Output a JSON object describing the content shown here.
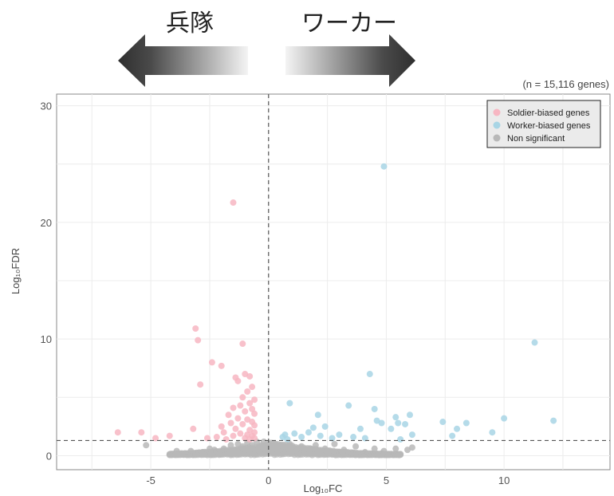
{
  "header": {
    "left_label": "兵隊",
    "right_label": "ワーカー"
  },
  "chart_data": {
    "type": "scatter",
    "title": "",
    "note": "(n = 15,116 genes)",
    "xlabel": "Log₁₀FC",
    "ylabel": "Log₁₀FDR",
    "xlim": [
      -9,
      14.5
    ],
    "ylim": [
      -1.2,
      31
    ],
    "xticks": [
      -5,
      0,
      5,
      10
    ],
    "yticks": [
      0,
      10,
      20,
      30
    ],
    "grid": true,
    "legend_position": "top-right",
    "vline_x": 0,
    "hline_y": 1.3,
    "colors": {
      "soldier": "#f7b6c2",
      "worker": "#a8d5e5",
      "nonsig": "#b8b8b8",
      "arrow_dark": "#3a3a3a",
      "panel_border": "#888888",
      "grid": "#ececec"
    },
    "series": [
      {
        "name": "Soldier-biased genes",
        "color": "#f7b6c2",
        "points": [
          [
            -1.5,
            21.7
          ],
          [
            -3.1,
            10.9
          ],
          [
            -3.0,
            9.9
          ],
          [
            -1.1,
            9.6
          ],
          [
            -2.4,
            8.0
          ],
          [
            -2.0,
            7.7
          ],
          [
            -1.0,
            7.0
          ],
          [
            -1.4,
            6.7
          ],
          [
            -0.8,
            6.8
          ],
          [
            -1.3,
            6.4
          ],
          [
            -2.9,
            6.1
          ],
          [
            -0.7,
            5.9
          ],
          [
            -0.9,
            5.5
          ],
          [
            -1.1,
            5.0
          ],
          [
            -0.6,
            4.8
          ],
          [
            -0.8,
            4.5
          ],
          [
            -1.2,
            4.3
          ],
          [
            -1.5,
            4.1
          ],
          [
            -0.7,
            4.0
          ],
          [
            -1.0,
            3.8
          ],
          [
            -0.6,
            3.6
          ],
          [
            -1.7,
            3.5
          ],
          [
            -1.3,
            3.2
          ],
          [
            -0.9,
            3.1
          ],
          [
            -0.7,
            2.9
          ],
          [
            -1.6,
            2.8
          ],
          [
            -1.1,
            2.7
          ],
          [
            -0.6,
            2.6
          ],
          [
            -3.2,
            2.3
          ],
          [
            -2.0,
            2.5
          ],
          [
            -1.4,
            2.3
          ],
          [
            -0.8,
            2.2
          ],
          [
            -0.6,
            2.0
          ],
          [
            -1.9,
            2.0
          ],
          [
            -1.2,
            1.9
          ],
          [
            -0.9,
            1.8
          ],
          [
            -0.7,
            1.7
          ],
          [
            -1.5,
            1.7
          ],
          [
            -2.2,
            1.6
          ],
          [
            -0.6,
            1.5
          ],
          [
            -1.0,
            1.5
          ],
          [
            -6.4,
            2.0
          ],
          [
            -5.4,
            2.0
          ],
          [
            -4.8,
            1.5
          ],
          [
            -4.2,
            1.7
          ],
          [
            -2.6,
            1.5
          ],
          [
            -1.8,
            1.4
          ],
          [
            -0.8,
            1.4
          ]
        ]
      },
      {
        "name": "Worker-biased genes",
        "color": "#a8d5e5",
        "points": [
          [
            4.9,
            24.8
          ],
          [
            11.3,
            9.7
          ],
          [
            4.3,
            7.0
          ],
          [
            0.9,
            4.5
          ],
          [
            3.4,
            4.3
          ],
          [
            2.1,
            3.5
          ],
          [
            4.5,
            4.0
          ],
          [
            5.4,
            3.3
          ],
          [
            6.0,
            3.5
          ],
          [
            4.6,
            3.0
          ],
          [
            3.9,
            2.3
          ],
          [
            2.4,
            2.5
          ],
          [
            1.9,
            2.4
          ],
          [
            5.8,
            2.7
          ],
          [
            5.5,
            2.8
          ],
          [
            4.8,
            2.8
          ],
          [
            5.2,
            2.3
          ],
          [
            7.4,
            2.9
          ],
          [
            8.4,
            2.8
          ],
          [
            10.0,
            3.2
          ],
          [
            12.1,
            3.0
          ],
          [
            8.0,
            2.3
          ],
          [
            9.5,
            2.0
          ],
          [
            7.8,
            1.7
          ],
          [
            3.0,
            1.8
          ],
          [
            2.2,
            1.7
          ],
          [
            1.4,
            1.6
          ],
          [
            3.6,
            1.6
          ],
          [
            0.7,
            1.8
          ],
          [
            1.1,
            1.9
          ],
          [
            1.7,
            2.0
          ],
          [
            0.6,
            1.6
          ],
          [
            2.7,
            1.5
          ],
          [
            4.1,
            1.5
          ],
          [
            6.1,
            1.8
          ],
          [
            5.6,
            1.4
          ],
          [
            0.8,
            1.4
          ]
        ]
      },
      {
        "name": "Non significant",
        "color": "#b8b8b8",
        "points": [
          [
            -5.2,
            0.9
          ],
          [
            -3.9,
            0.4
          ],
          [
            -3.3,
            0.4
          ],
          [
            -2.8,
            0.3
          ],
          [
            -2.3,
            0.5
          ],
          [
            -1.9,
            0.6
          ],
          [
            -1.6,
            0.9
          ],
          [
            -1.3,
            1.0
          ],
          [
            -1.1,
            0.8
          ],
          [
            -0.9,
            1.1
          ],
          [
            -0.7,
            0.9
          ],
          [
            -0.5,
            1.2
          ],
          [
            -0.4,
            0.6
          ],
          [
            -0.3,
            0.9
          ],
          [
            -0.2,
            1.2
          ],
          [
            -0.1,
            0.4
          ],
          [
            0.0,
            0.8
          ],
          [
            0.1,
            1.1
          ],
          [
            0.2,
            0.5
          ],
          [
            0.3,
            1.0
          ],
          [
            0.4,
            0.3
          ],
          [
            0.5,
            0.9
          ],
          [
            0.7,
            0.6
          ],
          [
            0.9,
            1.0
          ],
          [
            1.1,
            0.5
          ],
          [
            1.4,
            0.8
          ],
          [
            1.7,
            0.4
          ],
          [
            2.0,
            0.9
          ],
          [
            2.4,
            0.6
          ],
          [
            2.8,
            1.0
          ],
          [
            3.2,
            0.5
          ],
          [
            3.7,
            0.8
          ],
          [
            4.1,
            0.3
          ],
          [
            4.5,
            0.6
          ],
          [
            4.9,
            0.4
          ],
          [
            5.4,
            0.6
          ],
          [
            5.9,
            0.5
          ],
          [
            6.1,
            0.7
          ],
          [
            4.8,
            0.2
          ],
          [
            3.0,
            0.3
          ],
          [
            2.2,
            0.2
          ],
          [
            1.3,
            0.2
          ],
          [
            -1.0,
            0.2
          ],
          [
            -2.0,
            0.2
          ],
          [
            -0.6,
            0.2
          ],
          [
            0.6,
            0.2
          ],
          [
            -1.4,
            0.5
          ],
          [
            1.8,
            0.6
          ],
          [
            -2.5,
            0.6
          ],
          [
            2.6,
            0.3
          ]
        ]
      }
    ]
  }
}
